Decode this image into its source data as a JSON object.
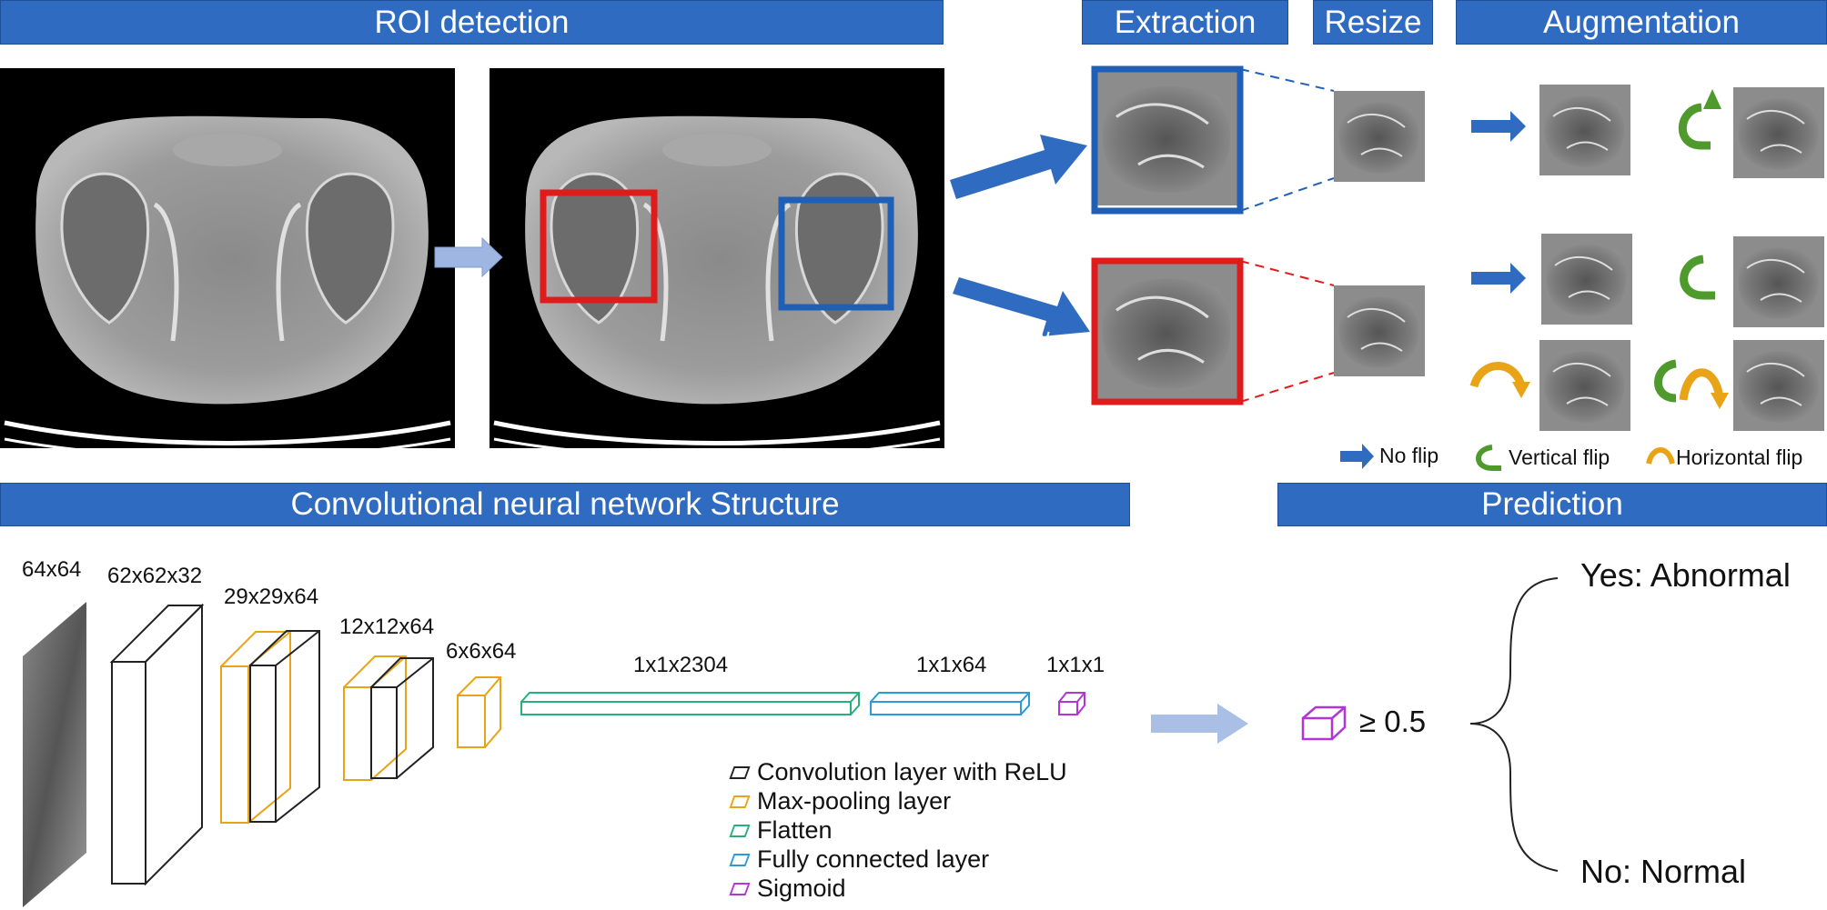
{
  "headers": {
    "roi": "ROI detection",
    "extraction": "Extraction",
    "resize": "Resize",
    "augmentation": "Augmentation",
    "cnn": "Convolutional neural network Structure",
    "prediction": "Prediction"
  },
  "branches": {
    "normal": "Normal",
    "abnormal": "Abnormal"
  },
  "flip_legend": {
    "no_flip": "No flip",
    "vertical": "Vertical flip",
    "horizontal": "Horizontal flip"
  },
  "cnn_dims": {
    "input": "64x64",
    "conv1": "62x62x32",
    "pool1": "29x29x64",
    "conv2": "12x12x64",
    "pool2": "6x6x64",
    "flatten": "1x1x2304",
    "fc": "1x1x64",
    "sigmoid": "1x1x1"
  },
  "layer_legend": {
    "conv": "Convolution layer with ReLU",
    "pool": "Max-pooling layer",
    "flatten": "Flatten",
    "fc": "Fully connected layer",
    "sigmoid": "Sigmoid"
  },
  "prediction": {
    "threshold": "≥ 0.5",
    "yes": "Yes: Abnormal",
    "no": "No: Normal"
  },
  "colors": {
    "header": "#2f6bc1",
    "roi_red": "#e01b1b",
    "roi_blue": "#1f5fb5",
    "conv": "#222222",
    "pool": "#e8a317",
    "flatten": "#27b07a",
    "fc": "#2c9ad6",
    "sigmoid": "#b235d6",
    "vertical_flip": "#4f9a2c",
    "horizontal_flip": "#e8a317"
  }
}
